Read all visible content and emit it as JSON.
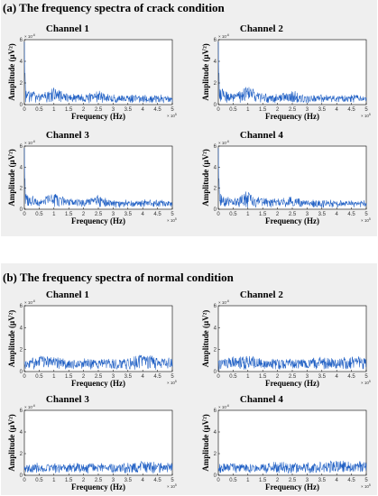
{
  "panels": [
    {
      "title": "(a) The frequency spectra of crack condition",
      "condition": "crack",
      "chart_data": [
        {
          "type": "line",
          "title": "Channel 1",
          "xlabel": "Frequency (Hz)",
          "ylabel": "Amplitude (μV²)",
          "x_multiplier": "× 10^5",
          "y_multiplier": "× 10^-6",
          "xlim": [
            0,
            5
          ],
          "ylim": [
            0,
            6
          ],
          "x_ticks": [
            "0",
            "0.5",
            "1",
            "1.5",
            "2",
            "2.5",
            "3",
            "3.5",
            "4",
            "4.5",
            "5"
          ],
          "y_ticks": [
            "0",
            "2",
            "4",
            "6"
          ],
          "color": "#1f5fc4",
          "x": [
            0,
            0.02,
            0.5,
            1.0,
            1.1,
            1.5,
            2.0,
            2.5,
            3.0,
            3.5,
            4.0,
            4.5,
            5.0
          ],
          "y": [
            5.8,
            1.6,
            0.8,
            1.6,
            1.4,
            0.9,
            0.8,
            1.1,
            0.7,
            0.7,
            0.7,
            0.7,
            0.6
          ]
        },
        {
          "type": "line",
          "title": "Channel 2",
          "xlabel": "Frequency (Hz)",
          "ylabel": "Amplitude (μV²)",
          "x_multiplier": "× 10^5",
          "y_multiplier": "× 10^-6",
          "xlim": [
            0,
            5
          ],
          "ylim": [
            0,
            6
          ],
          "x_ticks": [
            "0",
            "0.5",
            "1",
            "1.5",
            "2",
            "2.5",
            "3",
            "3.5",
            "4",
            "4.5",
            "5"
          ],
          "y_ticks": [
            "0",
            "2",
            "4",
            "6"
          ],
          "color": "#1f5fc4",
          "x": [
            0,
            0.02,
            0.5,
            1.0,
            1.1,
            1.5,
            2.0,
            2.5,
            3.0,
            3.5,
            4.0,
            4.5,
            5.0
          ],
          "y": [
            5.8,
            1.6,
            0.8,
            1.7,
            1.4,
            0.9,
            0.8,
            1.2,
            0.7,
            0.7,
            0.7,
            0.7,
            0.6
          ]
        },
        {
          "type": "line",
          "title": "Channel 3",
          "xlabel": "Frequency (Hz)",
          "ylabel": "Amplitude (μV²)",
          "x_multiplier": "× 10^5",
          "y_multiplier": "× 10^-6",
          "xlim": [
            0,
            5
          ],
          "ylim": [
            0,
            6
          ],
          "x_ticks": [
            "0",
            "0.5",
            "1",
            "1.5",
            "2",
            "2.5",
            "3",
            "3.5",
            "4",
            "4.5",
            "5"
          ],
          "y_ticks": [
            "0",
            "2",
            "4",
            "6"
          ],
          "color": "#1f5fc4",
          "x": [
            0,
            0.02,
            0.5,
            1.0,
            1.1,
            1.5,
            2.0,
            2.5,
            3.0,
            3.5,
            4.0,
            4.5,
            5.0
          ],
          "y": [
            5.8,
            1.5,
            0.8,
            1.7,
            1.4,
            0.9,
            0.8,
            1.2,
            0.7,
            0.7,
            0.7,
            0.7,
            0.6
          ]
        },
        {
          "type": "line",
          "title": "Channel 4",
          "xlabel": "Frequency (Hz)",
          "ylabel": "Amplitude (μV²)",
          "x_multiplier": "× 10^5",
          "y_multiplier": "× 10^-6",
          "xlim": [
            0,
            5
          ],
          "ylim": [
            0,
            6
          ],
          "x_ticks": [
            "0",
            "0.5",
            "1",
            "1.5",
            "2",
            "2.5",
            "3",
            "3.5",
            "4",
            "4.5",
            "5"
          ],
          "y_ticks": [
            "0",
            "2",
            "4",
            "6"
          ],
          "color": "#1f5fc4",
          "x": [
            0,
            0.02,
            0.5,
            1.0,
            1.1,
            1.5,
            2.0,
            2.5,
            3.0,
            3.5,
            4.0,
            4.5,
            5.0
          ],
          "y": [
            5.8,
            1.5,
            0.8,
            1.8,
            1.4,
            0.9,
            0.8,
            1.2,
            0.7,
            0.7,
            0.7,
            0.7,
            0.6
          ]
        }
      ]
    },
    {
      "title": "(b) The frequency spectra of normal condition",
      "condition": "normal",
      "chart_data": [
        {
          "type": "line",
          "title": "Channel 1",
          "xlabel": "Frequency (Hz)",
          "ylabel": "Amplitude (μV²)",
          "x_multiplier": "× 10^5",
          "y_multiplier": "× 10^-6",
          "xlim": [
            0,
            5
          ],
          "ylim": [
            0,
            6
          ],
          "x_ticks": [
            "0",
            "0.5",
            "1",
            "1.5",
            "2",
            "2.5",
            "3",
            "3.5",
            "4",
            "4.5",
            "5"
          ],
          "y_ticks": [
            "0",
            "2",
            "4",
            "6"
          ],
          "color": "#1f5fc4",
          "x": [
            0,
            0.5,
            1.0,
            1.5,
            2.0,
            2.5,
            3.0,
            3.5,
            4.0,
            4.5,
            5.0
          ],
          "y": [
            0.9,
            1.4,
            1.2,
            1.0,
            1.1,
            1.0,
            1.0,
            1.1,
            1.6,
            1.2,
            1.1
          ]
        },
        {
          "type": "line",
          "title": "Channel 2",
          "xlabel": "Frequency (Hz)",
          "ylabel": "Amplitude (μV²)",
          "x_multiplier": "× 10^5",
          "y_multiplier": "× 10^-6",
          "xlim": [
            0,
            5
          ],
          "ylim": [
            0,
            6
          ],
          "x_ticks": [
            "0",
            "0.5",
            "1",
            "1.5",
            "2",
            "2.5",
            "3",
            "3.5",
            "4",
            "4.5",
            "5"
          ],
          "y_ticks": [
            "0",
            "2",
            "4",
            "6"
          ],
          "color": "#1f5fc4",
          "x": [
            0,
            0.5,
            1.0,
            1.5,
            2.0,
            2.5,
            3.0,
            3.5,
            4.0,
            4.5,
            5.0
          ],
          "y": [
            1.0,
            1.3,
            1.5,
            1.0,
            1.1,
            1.0,
            1.0,
            1.2,
            1.2,
            1.3,
            1.2
          ]
        },
        {
          "type": "line",
          "title": "Channel 3",
          "xlabel": "Frequency (Hz)",
          "ylabel": "Amplitude (μV²)",
          "x_multiplier": "× 10^5",
          "y_multiplier": "× 10^-6",
          "xlim": [
            0,
            5
          ],
          "ylim": [
            0,
            6
          ],
          "x_ticks": [
            "0",
            "0.5",
            "1",
            "1.5",
            "2",
            "2.5",
            "3",
            "3.5",
            "4",
            "4.5",
            "5"
          ],
          "y_ticks": [
            "0",
            "2",
            "4",
            "6"
          ],
          "color": "#1f5fc4",
          "x": [
            0,
            0.5,
            1.0,
            1.5,
            2.0,
            2.5,
            3.0,
            3.5,
            4.0,
            4.5,
            5.0
          ],
          "y": [
            0.8,
            1.0,
            0.9,
            1.0,
            1.0,
            0.9,
            0.9,
            1.0,
            1.2,
            1.1,
            1.0
          ]
        },
        {
          "type": "line",
          "title": "Channel 4",
          "xlabel": "Frequency (Hz)",
          "ylabel": "Amplitude (μV²)",
          "x_multiplier": "× 10^5",
          "y_multiplier": "× 10^-6",
          "xlim": [
            0,
            5
          ],
          "ylim": [
            0,
            6
          ],
          "x_ticks": [
            "0",
            "0.5",
            "1",
            "1.5",
            "2",
            "2.5",
            "3",
            "3.5",
            "4",
            "4.5",
            "5"
          ],
          "y_ticks": [
            "0",
            "2",
            "4",
            "6"
          ],
          "color": "#1f5fc4",
          "x": [
            0,
            0.5,
            1.0,
            1.5,
            2.0,
            2.5,
            3.0,
            3.5,
            4.0,
            4.5,
            5.0
          ],
          "y": [
            1.0,
            1.1,
            1.0,
            1.0,
            1.1,
            1.0,
            1.0,
            1.1,
            1.3,
            1.2,
            1.1
          ]
        }
      ]
    }
  ]
}
